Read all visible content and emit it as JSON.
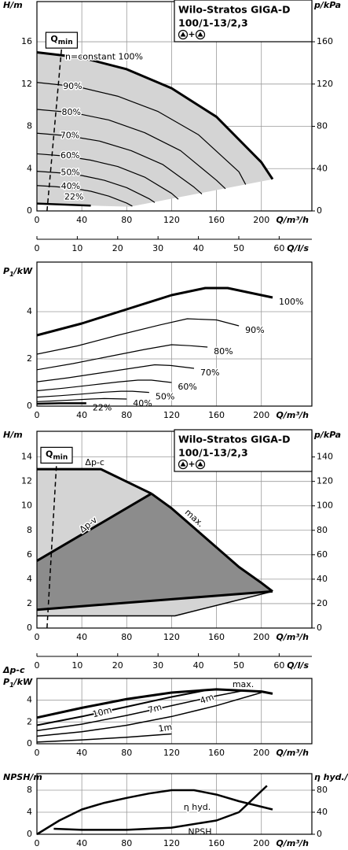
{
  "chart_data": [
    {
      "type": "line",
      "title": "Wilo-Stratos GIGA-D",
      "subtitle": "100/1-13/2,3",
      "symbol_join": "+",
      "ylabel": "H/m",
      "y2label": "p/kPa",
      "xlabel": "Q/m³/h",
      "x2label": "Q/l/s",
      "xlim": [
        0,
        245
      ],
      "xticks": [
        0,
        40,
        80,
        120,
        160,
        200
      ],
      "x2lim": [
        0,
        68.1
      ],
      "x2ticks": [
        0,
        10,
        20,
        30,
        40,
        50,
        60
      ],
      "ylim": [
        0,
        19.8
      ],
      "yticks": [
        0,
        4,
        8,
        12,
        16
      ],
      "y2lim": [
        0,
        198
      ],
      "y2ticks": [
        0,
        40,
        80,
        120,
        160
      ],
      "grid": true,
      "areas": [
        {
          "color": "#d4d4d4",
          "x": [
            0,
            0,
            40,
            80,
            120,
            160,
            200,
            210,
            83,
            48
          ],
          "values": [
            0.7,
            15,
            14.5,
            13.4,
            11.6,
            8.9,
            4.6,
            3.0,
            0.4,
            0.5
          ]
        }
      ],
      "series": [
        {
          "name": "n=constant 100%",
          "color": "#000",
          "width": 3,
          "x": [
            0,
            40,
            80,
            120,
            160,
            200,
            210
          ],
          "values": [
            15,
            14.5,
            13.4,
            11.6,
            8.9,
            4.6,
            3.0
          ]
        },
        {
          "name": "90%",
          "color": "#000",
          "width": 1.2,
          "x": [
            0,
            36,
            72,
            108,
            144,
            180,
            186
          ],
          "values": [
            12.15,
            11.75,
            10.85,
            9.4,
            7.2,
            3.7,
            2.5
          ]
        },
        {
          "name": "80%",
          "color": "#000",
          "width": 1.2,
          "x": [
            0,
            32,
            64,
            96,
            128,
            160,
            168
          ],
          "values": [
            9.6,
            9.3,
            8.6,
            7.4,
            5.7,
            2.9,
            2.1
          ]
        },
        {
          "name": "70%",
          "color": "#000",
          "width": 1.2,
          "x": [
            0,
            28,
            56,
            84,
            112,
            140,
            147
          ],
          "values": [
            7.35,
            7.1,
            6.6,
            5.7,
            4.4,
            2.25,
            1.6
          ]
        },
        {
          "name": "60%",
          "color": "#000",
          "width": 1.2,
          "x": [
            0,
            24,
            48,
            72,
            96,
            120,
            126
          ],
          "values": [
            5.4,
            5.2,
            4.8,
            4.2,
            3.2,
            1.66,
            1.1
          ]
        },
        {
          "name": "50%",
          "color": "#000",
          "width": 1.2,
          "x": [
            0,
            20,
            40,
            60,
            80,
            100,
            105
          ],
          "values": [
            3.75,
            3.6,
            3.35,
            2.9,
            2.2,
            1.15,
            0.8
          ]
        },
        {
          "name": "40%",
          "color": "#000",
          "width": 1.2,
          "x": [
            0,
            16,
            32,
            48,
            64,
            80,
            85
          ],
          "values": [
            2.4,
            2.3,
            2.15,
            1.86,
            1.4,
            0.74,
            0.45
          ]
        },
        {
          "name": "22%",
          "color": "#000",
          "width": 2.5,
          "x": [
            0,
            48
          ],
          "values": [
            0.7,
            0.5
          ]
        }
      ],
      "qmin": {
        "label": "Q",
        "label_sub": "min",
        "x": [
          9,
          22
        ],
        "values": [
          0,
          15.4
        ]
      }
    },
    {
      "type": "line",
      "ylabel": "P",
      "ylabel_sub": "1",
      "ylabel_unit": "/kW",
      "xlabel": "Q/m³/h",
      "xlim": [
        0,
        245
      ],
      "xticks": [
        0,
        40,
        80,
        120,
        160,
        200
      ],
      "ylim": [
        0,
        6.1
      ],
      "yticks": [
        0,
        2,
        4
      ],
      "grid": true,
      "series": [
        {
          "name": "100%",
          "color": "#000",
          "width": 3,
          "x": [
            0,
            40,
            80,
            120,
            150,
            170,
            210
          ],
          "values": [
            3.0,
            3.5,
            4.1,
            4.7,
            5.0,
            5.0,
            4.6
          ]
        },
        {
          "name": "90%",
          "color": "#000",
          "width": 1.2,
          "x": [
            0,
            36,
            72,
            109,
            134,
            160,
            180
          ],
          "values": [
            2.2,
            2.55,
            3.0,
            3.43,
            3.7,
            3.65,
            3.4
          ]
        },
        {
          "name": "80%",
          "color": "#000",
          "width": 1.2,
          "x": [
            0,
            32,
            64,
            96,
            120,
            136,
            152
          ],
          "values": [
            1.54,
            1.8,
            2.1,
            2.4,
            2.6,
            2.56,
            2.5
          ]
        },
        {
          "name": "70%",
          "color": "#000",
          "width": 1.2,
          "x": [
            0,
            28,
            56,
            84,
            105,
            119,
            140
          ],
          "values": [
            1.03,
            1.2,
            1.4,
            1.6,
            1.75,
            1.72,
            1.6
          ]
        },
        {
          "name": "60%",
          "color": "#000",
          "width": 1.2,
          "x": [
            0,
            24,
            48,
            72,
            90,
            102,
            120
          ],
          "values": [
            0.65,
            0.76,
            0.89,
            1.02,
            1.1,
            1.1,
            1.0
          ]
        },
        {
          "name": "50%",
          "color": "#000",
          "width": 1.2,
          "x": [
            0,
            20,
            40,
            60,
            75,
            85,
            100
          ],
          "values": [
            0.38,
            0.44,
            0.51,
            0.59,
            0.63,
            0.63,
            0.58
          ]
        },
        {
          "name": "40%",
          "color": "#000",
          "width": 1.2,
          "x": [
            0,
            16,
            32,
            48,
            60,
            80
          ],
          "values": [
            0.19,
            0.22,
            0.26,
            0.3,
            0.32,
            0.3
          ]
        },
        {
          "name": "22%",
          "color": "#000",
          "width": 2.5,
          "x": [
            0,
            20,
            44
          ],
          "values": [
            0.1,
            0.12,
            0.12
          ]
        }
      ]
    },
    {
      "type": "line",
      "title": "Wilo-Stratos GIGA-D",
      "subtitle": "100/1-13/2,3",
      "symbol_join": "+",
      "ylabel": "H/m",
      "y2label": "p/kPa",
      "xlabel": "Q/m³/h",
      "x2label": "Q/l/s",
      "xlim": [
        0,
        245
      ],
      "xticks": [
        0,
        40,
        80,
        120,
        160,
        200
      ],
      "x2lim": [
        0,
        68.1
      ],
      "x2ticks": [
        0,
        10,
        20,
        30,
        40,
        50,
        60
      ],
      "ylim": [
        0,
        16.1
      ],
      "yticks": [
        0,
        2,
        4,
        6,
        8,
        10,
        12,
        14
      ],
      "y2lim": [
        0,
        161
      ],
      "y2ticks": [
        0,
        20,
        40,
        60,
        80,
        100,
        120,
        140
      ],
      "grid": true,
      "areas": [
        {
          "color": "#d4d4d4",
          "x": [
            0,
            0,
            57,
            102,
            120,
            140,
            160,
            180,
            200,
            210,
            123
          ],
          "values": [
            1,
            13,
            13,
            11,
            9.8,
            8.2,
            6.6,
            5.0,
            3.7,
            3.0,
            1
          ]
        },
        {
          "color": "#8c8c8c",
          "x": [
            0,
            102,
            120,
            140,
            160,
            180,
            200,
            210,
            0
          ],
          "values": [
            5.5,
            11,
            9.8,
            8.2,
            6.6,
            5.0,
            3.7,
            3.0,
            1.5
          ]
        }
      ],
      "series": [
        {
          "name": "Δp-c",
          "color": "#000",
          "width": 3,
          "x": [
            0,
            57,
            102
          ],
          "values": [
            13,
            13,
            11
          ]
        },
        {
          "name": "Δp-v",
          "color": "#000",
          "width": 3,
          "x": [
            0,
            102
          ],
          "values": [
            5.5,
            11
          ]
        },
        {
          "name": "max.",
          "color": "#000",
          "width": 3,
          "x": [
            102,
            120,
            140,
            160,
            180,
            200,
            210
          ],
          "values": [
            11,
            9.8,
            8.2,
            6.6,
            5.0,
            3.7,
            3.0
          ]
        },
        {
          "color": "#000",
          "width": 3,
          "x": [
            0,
            210
          ],
          "values": [
            1.5,
            3.0
          ]
        },
        {
          "color": "#000",
          "width": 1.5,
          "x": [
            0,
            123,
            210
          ],
          "values": [
            1,
            1,
            3.0
          ]
        }
      ],
      "qmin": {
        "label": "Q",
        "label_sub": "min",
        "x": [
          9,
          17.5
        ],
        "values": [
          0,
          13.5
        ]
      }
    },
    {
      "type": "line",
      "ylabel_top": "Δp-c",
      "ylabel": "P",
      "ylabel_sub": "1",
      "ylabel_unit": "/kW",
      "xlabel": "Q/m³/h",
      "xlim": [
        0,
        245
      ],
      "xticks": [
        0,
        40,
        80,
        120,
        160,
        200
      ],
      "ylim": [
        0,
        6
      ],
      "yticks": [
        0,
        2,
        4
      ],
      "grid": true,
      "series": [
        {
          "name": "max.",
          "color": "#000",
          "width": 3,
          "x": [
            0,
            40,
            80,
            120,
            160,
            200,
            210
          ],
          "values": [
            2.4,
            3.3,
            4.1,
            4.7,
            5.0,
            4.8,
            4.6
          ]
        },
        {
          "name": "10m",
          "color": "#000",
          "width": 2,
          "x": [
            0,
            40,
            80,
            120,
            150
          ],
          "values": [
            1.7,
            2.5,
            3.4,
            4.3,
            4.9
          ]
        },
        {
          "name": "7m",
          "color": "#000",
          "width": 1.5,
          "x": [
            0,
            40,
            80,
            120,
            160,
            185
          ],
          "values": [
            1.2,
            1.8,
            2.6,
            3.5,
            4.4,
            4.9
          ]
        },
        {
          "name": "4m",
          "color": "#000",
          "width": 1.5,
          "x": [
            0,
            40,
            80,
            120,
            160,
            200
          ],
          "values": [
            0.7,
            1.1,
            1.7,
            2.5,
            3.5,
            4.7
          ]
        },
        {
          "name": "1m",
          "color": "#000",
          "width": 1.5,
          "x": [
            0,
            40,
            80,
            120
          ],
          "values": [
            0.15,
            0.35,
            0.6,
            0.9
          ]
        }
      ]
    },
    {
      "type": "line",
      "ylabel": "NPSH/m",
      "y2label": "η hyd./%",
      "xlabel": "Q/m³/h",
      "xlim": [
        0,
        245
      ],
      "xticks": [
        0,
        40,
        80,
        120,
        160,
        200
      ],
      "ylim": [
        0,
        11
      ],
      "yticks": [
        0,
        4,
        8
      ],
      "y2lim": [
        0,
        110
      ],
      "y2ticks": [
        0,
        40,
        80
      ],
      "grid": true,
      "series": [
        {
          "name": "η hyd.",
          "axis": "y2",
          "color": "#000",
          "width": 2.5,
          "x": [
            0,
            20,
            40,
            60,
            80,
            100,
            120,
            140,
            160,
            180,
            210
          ],
          "values": [
            0,
            25,
            45,
            57,
            66,
            74,
            80,
            80,
            72,
            60,
            45
          ]
        },
        {
          "name": "NPSH",
          "color": "#000",
          "width": 2.5,
          "x": [
            15,
            40,
            80,
            120,
            160,
            180,
            205
          ],
          "values": [
            1.0,
            0.8,
            0.8,
            1.2,
            2.5,
            4,
            8.8
          ]
        }
      ]
    }
  ]
}
